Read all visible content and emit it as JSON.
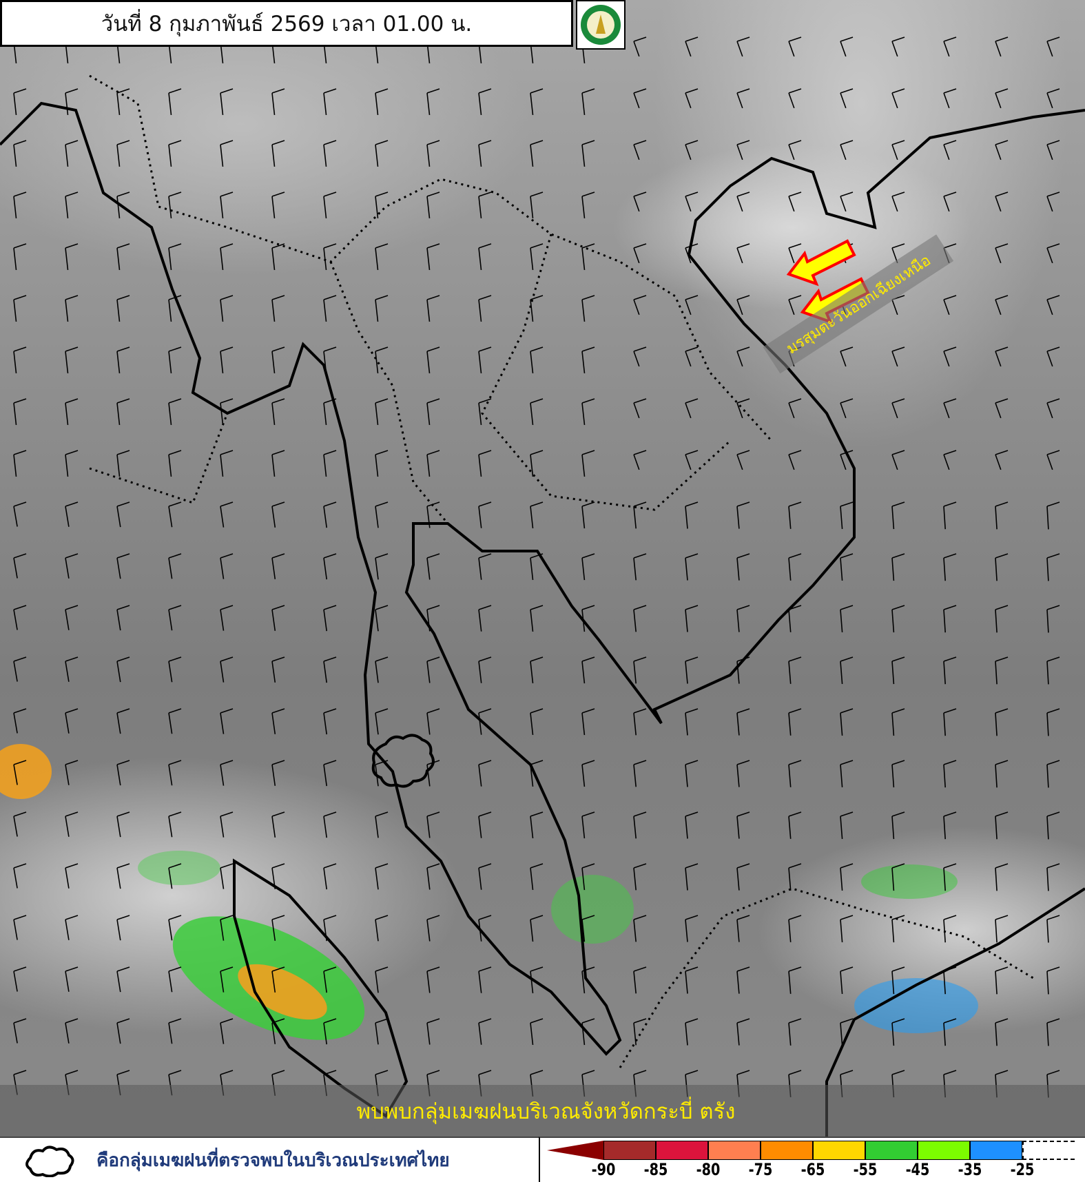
{
  "header": {
    "title": "วันที่ 8 กุมภาพันธ์ 2569 เวลา 01.00 น.",
    "logo": "กรมอุตุนิยมวิทยา METEOROLOGICAL DEPARTMENT"
  },
  "annotations": {
    "monsoon_label": "มรสุมตะวันออกเฉียงเหนือ",
    "banner": "พบพบกลุ่มเมฆฝนบริเวณจังหวัดกระบี่ ตรัง",
    "arrow_color": "#ffff00",
    "arrow_outline": "#ff0000"
  },
  "legend": {
    "cloud_symbol_text": "คือกลุ่มเมฆฝนที่ตรวจพบในบริเวณประเทศไทย",
    "colorbar": {
      "colors": [
        "#8b0000",
        "#a52a2a",
        "#dc143c",
        "#ff7f50",
        "#ff8c00",
        "#ffd700",
        "#32cd32",
        "#7cfc00",
        "#1e90ff",
        "#ffffff"
      ],
      "ticks": [
        "-90",
        "-85",
        "-80",
        "-75",
        "-65",
        "-55",
        "-45",
        "-35",
        "-25"
      ]
    }
  }
}
